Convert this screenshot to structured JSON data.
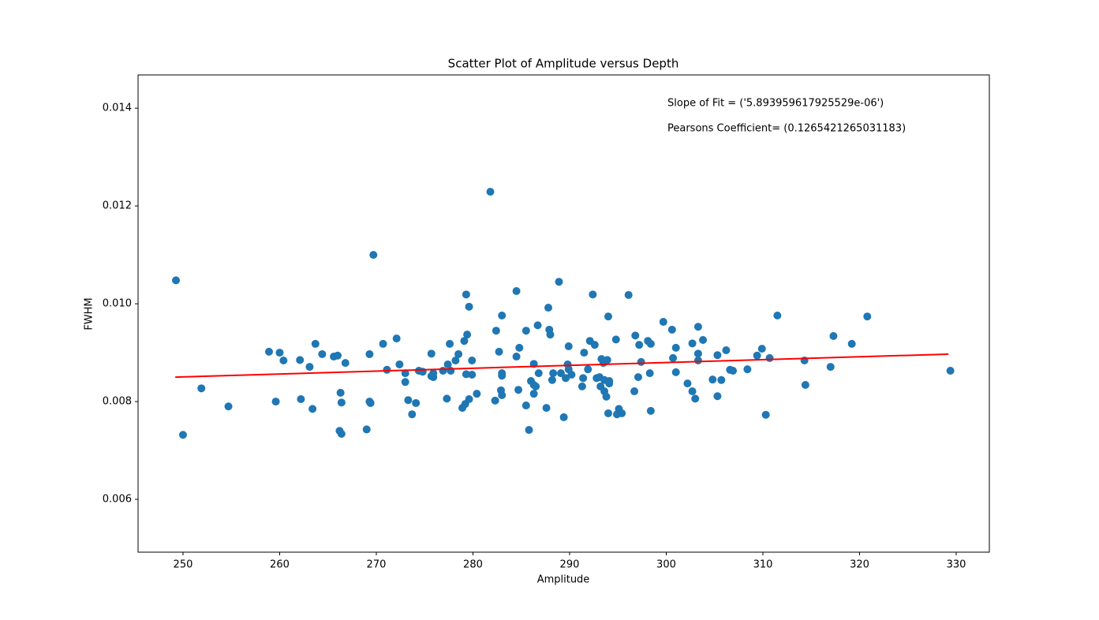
{
  "chart_data": {
    "type": "scatter",
    "title": "Scatter Plot of Amplitude versus Depth",
    "xlabel": "Amplitude",
    "ylabel": "FWHM",
    "annotations": [
      "Slope of Fit = ('5.893959617925529e-06')",
      "Pearsons Coefficient= (0.1265421265031183)"
    ],
    "xlim": [
      245.35,
      333.43
    ],
    "ylim": [
      0.00492,
      0.01468
    ],
    "xticks": [
      250,
      260,
      270,
      280,
      290,
      300,
      310,
      320,
      330
    ],
    "yticks": [
      0.006,
      0.008,
      {
        "value": 0.01,
        "label": "0.010"
      },
      0.012,
      0.014
    ],
    "points": {
      "color": "#1f77b4",
      "x": [
        249.27,
        250.0,
        251.9,
        254.7,
        258.9,
        259.6,
        260.0,
        260.4,
        262.1,
        262.2,
        263.1,
        263.4,
        263.7,
        264.4,
        265.6,
        266.0,
        266.2,
        266.4,
        266.3,
        266.4,
        266.8,
        269.0,
        269.3,
        269.4,
        269.3,
        269.7,
        270.7,
        271.1,
        272.1,
        272.4,
        273.0,
        273.0,
        273.3,
        273.7,
        274.1,
        274.4,
        274.8,
        275.7,
        275.7,
        275.9,
        275.9,
        276.9,
        277.3,
        277.4,
        277.6,
        277.7,
        278.2,
        278.5,
        278.9,
        279.1,
        279.2,
        279.3,
        279.3,
        279.4,
        279.6,
        279.6,
        279.9,
        279.9,
        280.4,
        281.8,
        282.3,
        282.4,
        282.7,
        282.9,
        283.0,
        283.0,
        283.0,
        283.0,
        284.5,
        284.5,
        284.7,
        284.8,
        285.5,
        285.5,
        285.8,
        286.0,
        286.3,
        286.3,
        286.3,
        286.5,
        286.7,
        286.8,
        287.6,
        287.8,
        287.9,
        288.0,
        288.2,
        288.3,
        288.9,
        289.1,
        289.4,
        289.6,
        289.8,
        289.9,
        289.9,
        290.2,
        291.3,
        291.4,
        291.5,
        291.9,
        292.1,
        292.4,
        292.6,
        292.8,
        293.1,
        293.2,
        293.3,
        293.5,
        293.6,
        293.6,
        293.8,
        293.9,
        294.0,
        294.0,
        294.1,
        294.1,
        294.8,
        294.9,
        295.1,
        295.4,
        296.1,
        296.7,
        296.8,
        297.1,
        297.2,
        297.4,
        298.1,
        298.3,
        298.4,
        298.4,
        299.7,
        300.6,
        300.7,
        301.0,
        301.0,
        302.2,
        302.7,
        302.7,
        303.0,
        303.3,
        303.3,
        303.3,
        303.8,
        304.8,
        305.3,
        305.3,
        305.7,
        306.2,
        306.6,
        306.9,
        308.4,
        309.4,
        309.9,
        310.3,
        310.7,
        311.5,
        314.3,
        314.4,
        317.0,
        317.3,
        319.2,
        320.8,
        329.4
      ],
      "y": [
        0.01048,
        0.00732,
        0.00827,
        0.0079,
        0.00902,
        0.008,
        0.009,
        0.00884,
        0.00885,
        0.00805,
        0.00871,
        0.00785,
        0.00918,
        0.00897,
        0.00892,
        0.00894,
        0.0074,
        0.00734,
        0.00818,
        0.00798,
        0.00879,
        0.00743,
        0.00897,
        0.00797,
        0.008,
        0.011,
        0.00918,
        0.00865,
        0.00929,
        0.00876,
        0.00858,
        0.0084,
        0.00803,
        0.00774,
        0.00797,
        0.00863,
        0.00861,
        0.00898,
        0.00852,
        0.0085,
        0.00858,
        0.00863,
        0.00806,
        0.00876,
        0.00918,
        0.00863,
        0.00884,
        0.00897,
        0.00787,
        0.00924,
        0.00795,
        0.01019,
        0.00856,
        0.00937,
        0.00805,
        0.00994,
        0.00884,
        0.00855,
        0.00816,
        0.01229,
        0.00802,
        0.00945,
        0.00902,
        0.00823,
        0.00858,
        0.00853,
        0.00813,
        0.00976,
        0.01026,
        0.00892,
        0.00824,
        0.0091,
        0.00792,
        0.00945,
        0.00742,
        0.00842,
        0.00834,
        0.00877,
        0.00816,
        0.00831,
        0.00956,
        0.00858,
        0.00787,
        0.00992,
        0.00947,
        0.00937,
        0.00844,
        0.00858,
        0.01045,
        0.00858,
        0.00768,
        0.00848,
        0.00876,
        0.00913,
        0.00866,
        0.00855,
        0.00831,
        0.00848,
        0.009,
        0.00866,
        0.00924,
        0.01019,
        0.00916,
        0.00848,
        0.0085,
        0.00831,
        0.00887,
        0.00879,
        0.00844,
        0.00821,
        0.0081,
        0.00885,
        0.00974,
        0.00776,
        0.00842,
        0.00837,
        0.00927,
        0.00774,
        0.00785,
        0.00776,
        0.01018,
        0.00821,
        0.00935,
        0.0085,
        0.00916,
        0.00881,
        0.00924,
        0.00858,
        0.00781,
        0.00918,
        0.00963,
        0.00947,
        0.00889,
        0.0086,
        0.0091,
        0.00837,
        0.00919,
        0.00821,
        0.00806,
        0.00953,
        0.00898,
        0.00884,
        0.00926,
        0.00845,
        0.00895,
        0.00811,
        0.00844,
        0.00905,
        0.00865,
        0.00863,
        0.00866,
        0.00894,
        0.00908,
        0.00773,
        0.00889,
        0.00976,
        0.00884,
        0.00834,
        0.00871,
        0.00934,
        0.00918,
        0.00974,
        0.00863
      ]
    },
    "fit": {
      "color": "#ff0000",
      "x": [
        249.2,
        329.2
      ],
      "y": [
        0.0085,
        0.00897
      ]
    }
  }
}
